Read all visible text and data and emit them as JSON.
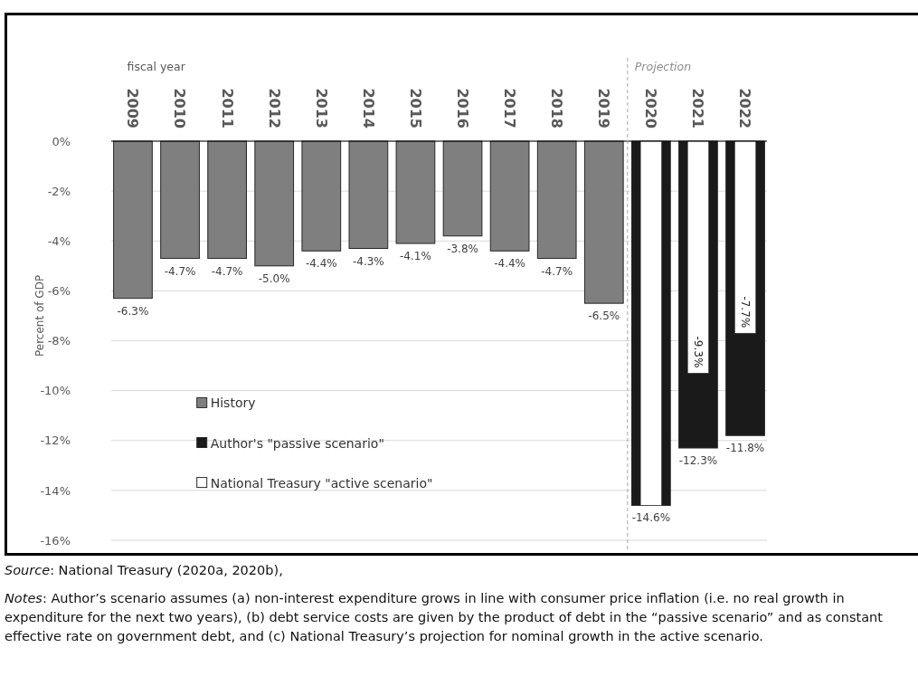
{
  "chart_data": {
    "type": "bar",
    "xlabel": "fiscal year",
    "ylabel": "Percent of GDP",
    "categories": [
      "2009",
      "2010",
      "2011",
      "2012",
      "2013",
      "2014",
      "2015",
      "2016",
      "2017",
      "2018",
      "2019",
      "2020",
      "2021",
      "2022"
    ],
    "series": [
      {
        "name": "History",
        "color": "#7f7f7f",
        "values": [
          -6.3,
          -4.7,
          -4.7,
          -5.0,
          -4.4,
          -4.3,
          -4.1,
          -3.8,
          -4.4,
          -4.7,
          -6.5,
          null,
          null,
          null
        ],
        "value_labels": [
          "-6.3%",
          "-4.7%",
          "-4.7%",
          "-5.0%",
          "-4.4%",
          "-4.3%",
          "-4.1%",
          "-3.8%",
          "-4.4%",
          "-4.7%",
          "-6.5%",
          null,
          null,
          null
        ]
      },
      {
        "name": "Author's \"passive scenario\"",
        "color": "#1a1a1a",
        "values": [
          null,
          null,
          null,
          null,
          null,
          null,
          null,
          null,
          null,
          null,
          null,
          -14.6,
          -12.3,
          -11.8
        ],
        "value_labels": [
          null,
          null,
          null,
          null,
          null,
          null,
          null,
          null,
          null,
          null,
          null,
          "-14.6%",
          "-12.3%",
          "-11.8%"
        ]
      },
      {
        "name": "National Treasury \"active scenario\"",
        "color": "#ffffff",
        "values": [
          null,
          null,
          null,
          null,
          null,
          null,
          null,
          null,
          null,
          null,
          null,
          -14.6,
          -9.3,
          -7.7
        ],
        "value_labels": [
          null,
          null,
          null,
          null,
          null,
          null,
          null,
          null,
          null,
          null,
          null,
          null,
          "-9.3%",
          "-7.7%"
        ]
      }
    ],
    "ylim": [
      -16,
      0
    ],
    "yticks": [
      {
        "value": 0,
        "label": "0%"
      },
      {
        "value": -2,
        "label": "-2%"
      },
      {
        "value": -4,
        "label": "-4%"
      },
      {
        "value": -6,
        "label": "-6%"
      },
      {
        "value": -8,
        "label": "-8%"
      },
      {
        "value": -10,
        "label": "-10%"
      },
      {
        "value": -12,
        "label": "-12%"
      },
      {
        "value": -14,
        "label": "-14%"
      },
      {
        "value": -16,
        "label": "-16%"
      }
    ],
    "grid": "y",
    "legend": "bottom left",
    "ref_lines": [
      {
        "axis": "x",
        "value": "2020",
        "label": "Projection",
        "color": "#a6a6a6",
        "line_style": "dashed"
      }
    ],
    "annotations": [
      "Source: National Treasury (2020a, 2020b),",
      "Notes: Author’s scenario assumes (a) non-interest expenditure grows in line with consumer price inflation (i.e. no real growth in expenditure for the next two years), (b) debt service costs are given by the product of debt in the “passive scenario” and as constant effective rate on government debt, and (c) National Treasury’s projection for nominal growth in the active scenario."
    ]
  }
}
